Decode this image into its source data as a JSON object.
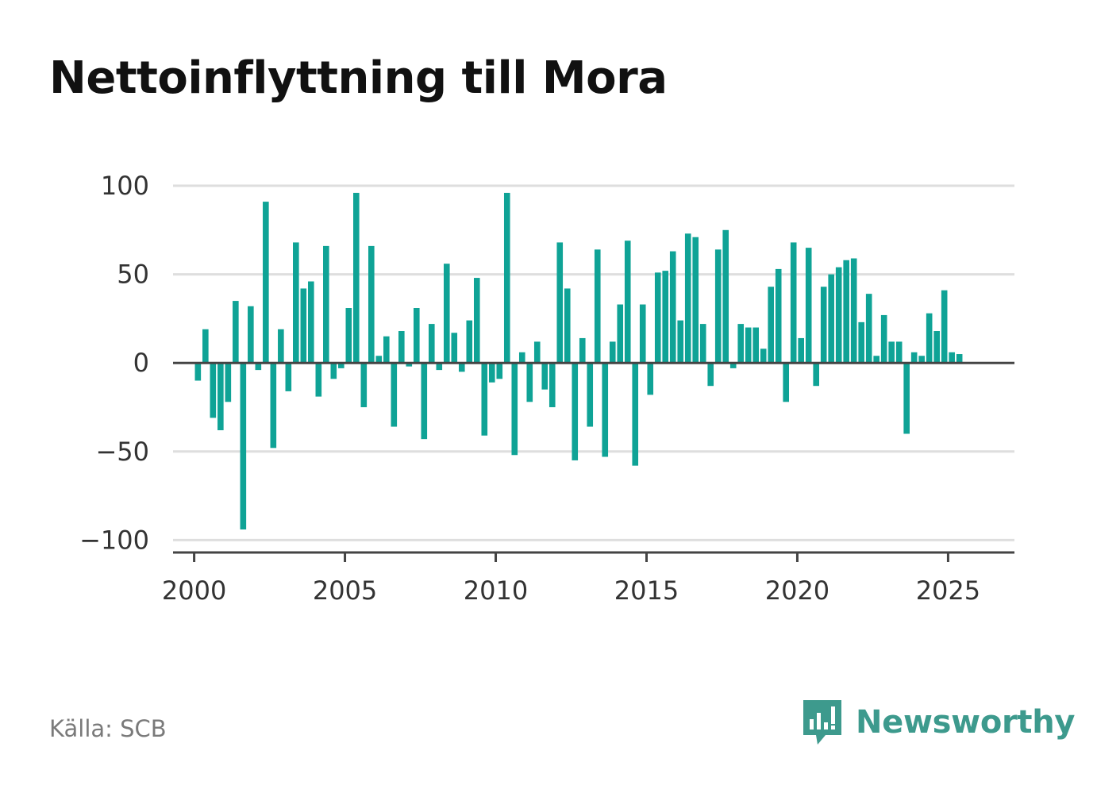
{
  "title": "Nettoinflyttning till Mora",
  "source": "Källa: SCB",
  "brand": {
    "name": "Newsworthy",
    "color": "#3d9a8d",
    "icon": "newsworthy-bar-chart-speech-bubble-icon"
  },
  "chart_data": {
    "type": "bar",
    "title": "Nettoinflyttning till Mora",
    "xlabel": "",
    "ylabel": "",
    "bar_color": "#0fa396",
    "ylim": [
      -107,
      100
    ],
    "xlim": [
      1999.3,
      2027.2
    ],
    "y_ticks": [
      100,
      50,
      0,
      -50,
      -100
    ],
    "y_tick_labels": [
      "100",
      "50",
      "0",
      "−50",
      "−100"
    ],
    "x_ticks": [
      2000,
      2005,
      2010,
      2015,
      2020,
      2025
    ],
    "x_tick_labels": [
      "2000",
      "2005",
      "2010",
      "2015",
      "2020",
      "2025"
    ],
    "grid": "horizontal",
    "legend": "none",
    "x": [
      2000.125,
      2000.375,
      2000.625,
      2000.875,
      2001.125,
      2001.375,
      2001.625,
      2001.875,
      2002.125,
      2002.375,
      2002.625,
      2002.875,
      2003.125,
      2003.375,
      2003.625,
      2003.875,
      2004.125,
      2004.375,
      2004.625,
      2004.875,
      2005.125,
      2005.375,
      2005.625,
      2005.875,
      2006.125,
      2006.375,
      2006.625,
      2006.875,
      2007.125,
      2007.375,
      2007.625,
      2007.875,
      2008.125,
      2008.375,
      2008.625,
      2008.875,
      2009.125,
      2009.375,
      2009.625,
      2009.875,
      2010.125,
      2010.375,
      2010.625,
      2010.875,
      2011.125,
      2011.375,
      2011.625,
      2011.875,
      2012.125,
      2012.375,
      2012.625,
      2012.875,
      2013.125,
      2013.375,
      2013.625,
      2013.875,
      2014.125,
      2014.375,
      2014.625,
      2014.875,
      2015.125,
      2015.375,
      2015.625,
      2015.875,
      2016.125,
      2016.375,
      2016.625,
      2016.875,
      2017.125,
      2017.375,
      2017.625,
      2017.875,
      2018.125,
      2018.375,
      2018.625,
      2018.875,
      2019.125,
      2019.375,
      2019.625,
      2019.875,
      2020.125,
      2020.375,
      2020.625,
      2020.875,
      2021.125,
      2021.375,
      2021.625,
      2021.875,
      2022.125,
      2022.375,
      2022.625,
      2022.875,
      2023.125,
      2023.375,
      2023.625,
      2023.875,
      2024.125,
      2024.375,
      2024.625,
      2024.875,
      2025.125,
      2025.375
    ],
    "values": [
      -10,
      19,
      -31,
      -38,
      -22,
      35,
      -94,
      32,
      -4,
      91,
      -48,
      19,
      -16,
      68,
      42,
      46,
      -19,
      66,
      -9,
      -3,
      31,
      96,
      -25,
      66,
      4,
      15,
      -36,
      18,
      -2,
      31,
      -43,
      22,
      -4,
      56,
      17,
      -5,
      24,
      48,
      -41,
      -11,
      -9,
      96,
      -52,
      6,
      -22,
      12,
      -15,
      -25,
      68,
      42,
      -55,
      14,
      -36,
      64,
      -53,
      12,
      33,
      69,
      -58,
      33,
      -18,
      51,
      52,
      63,
      24,
      73,
      71,
      22,
      -13,
      64,
      75,
      -3,
      22,
      20,
      20,
      8,
      43,
      53,
      -22,
      68,
      14,
      65,
      -13,
      43,
      50,
      54,
      58,
      59,
      23,
      39,
      4,
      27,
      12,
      12,
      -40,
      6,
      4,
      28,
      18,
      41,
      6,
      5
    ]
  }
}
